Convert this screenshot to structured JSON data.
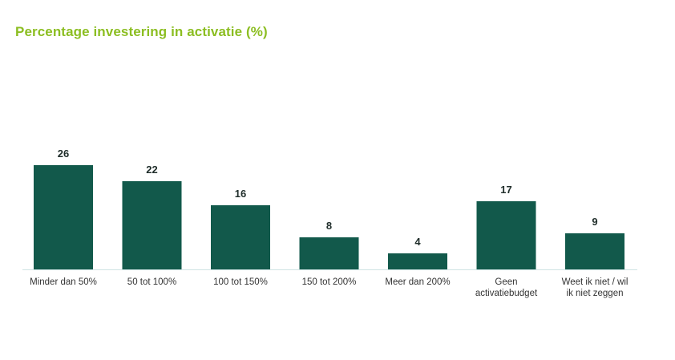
{
  "colors": {
    "title": "#8cbe22",
    "bar": "#12594b",
    "axis": "#cfe3e3"
  },
  "chart_data": {
    "type": "bar",
    "title": "Percentage investering in activatie (%)",
    "xlabel": "",
    "ylabel": "",
    "ylim": [
      0,
      30
    ],
    "grid": false,
    "categories": [
      [
        "Minder dan 50%"
      ],
      [
        "50 tot 100%"
      ],
      [
        "100 tot 150%"
      ],
      [
        "150 tot 200%"
      ],
      [
        "Meer dan 200%"
      ],
      [
        "Geen",
        "activatiebudget"
      ],
      [
        "Weet ik niet / wil",
        "ik niet zeggen"
      ]
    ],
    "values": [
      26,
      22,
      16,
      8,
      4,
      17,
      9
    ]
  }
}
